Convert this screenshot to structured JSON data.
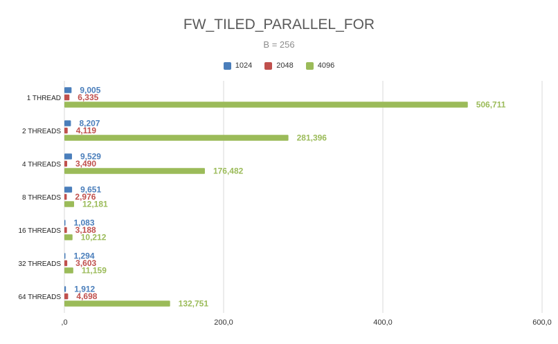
{
  "chart_data": {
    "type": "bar",
    "orientation": "horizontal",
    "title": "FW_TILED_PARALLEL_FOR",
    "subtitle": "B = 256",
    "categories": [
      "1 THREAD",
      "2 THREADS",
      "4 THREADS",
      "8 THREADS",
      "16 THREADS",
      "32 THREADS",
      "64 THREADS"
    ],
    "series": [
      {
        "name": "1024",
        "color": "#4a7ebb",
        "values": [
          9.005,
          8.207,
          9.529,
          9.651,
          1.083,
          1.294,
          1.912
        ],
        "labels": [
          "9,005",
          "8,207",
          "9,529",
          "9,651",
          "1,083",
          "1,294",
          "1,912"
        ]
      },
      {
        "name": "2048",
        "color": "#c0504d",
        "values": [
          6.335,
          4.119,
          3.49,
          2.976,
          3.188,
          3.603,
          4.698
        ],
        "labels": [
          "6,335",
          "4,119",
          "3,490",
          "2,976",
          "3,188",
          "3,603",
          "4,698"
        ]
      },
      {
        "name": "4096",
        "color": "#9bbb59",
        "values": [
          506.711,
          281.396,
          176.482,
          12.181,
          10.212,
          11.159,
          132.751
        ],
        "labels": [
          "506,711",
          "281,396",
          "176,482",
          "12,181",
          "10,212",
          "11,159",
          "132,751"
        ]
      }
    ],
    "xlim": [
      0,
      600
    ],
    "xticks": [
      0,
      200,
      400,
      600
    ],
    "xtick_labels": [
      ",0",
      "200,0",
      "400,0",
      "600,0"
    ],
    "grid": true,
    "legend_position": "top"
  }
}
